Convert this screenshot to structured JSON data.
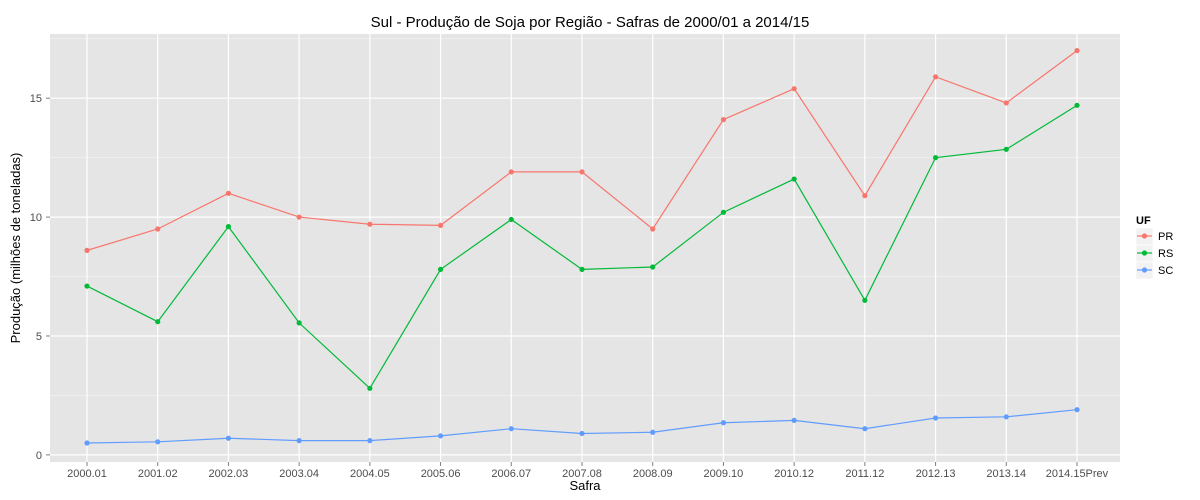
{
  "chart_data": {
    "type": "line",
    "title": "Sul  - Produção de Soja por Região - Safras de 2000/01 a 2014/15",
    "xlabel": "Safra",
    "ylabel": "Produção (milhões de toneladas)",
    "categories": [
      "2000.01",
      "2001.02",
      "2002.03",
      "2003.04",
      "2004.05",
      "2005.06",
      "2006.07",
      "2007.08",
      "2008.09",
      "2009.10",
      "2010.12",
      "2011.12",
      "2012.13",
      "2013.14",
      "2014.15Prev"
    ],
    "ylim": [
      -0.3,
      17.7
    ],
    "yticks": [
      0,
      5,
      10,
      15
    ],
    "grid": true,
    "legend": {
      "title": "UF",
      "position": "right"
    },
    "series": [
      {
        "name": "PR",
        "color": "#F8766D",
        "values": [
          8.6,
          9.5,
          11.0,
          10.0,
          9.7,
          9.65,
          11.9,
          11.9,
          9.5,
          14.1,
          15.4,
          10.9,
          15.9,
          14.8,
          17.0
        ]
      },
      {
        "name": "RS",
        "color": "#00BA38",
        "values": [
          7.1,
          5.6,
          9.6,
          5.55,
          2.8,
          7.8,
          9.9,
          7.8,
          7.9,
          10.2,
          11.6,
          6.5,
          12.5,
          12.85,
          14.7
        ]
      },
      {
        "name": "SC",
        "color": "#619CFF",
        "values": [
          0.5,
          0.55,
          0.7,
          0.6,
          0.6,
          0.8,
          1.1,
          0.9,
          0.95,
          1.35,
          1.45,
          1.1,
          1.55,
          1.6,
          1.9
        ]
      }
    ]
  }
}
